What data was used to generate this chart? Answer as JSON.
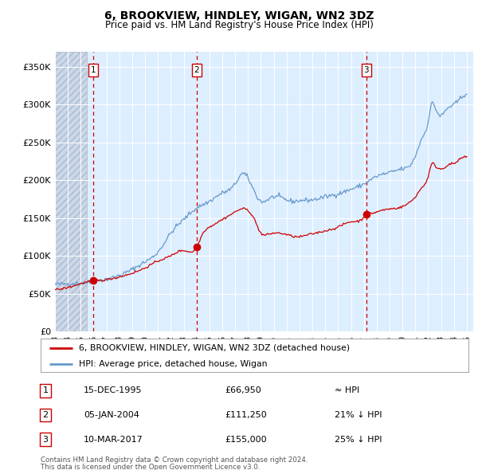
{
  "title": "6, BROOKVIEW, HINDLEY, WIGAN, WN2 3DZ",
  "subtitle": "Price paid vs. HM Land Registry's House Price Index (HPI)",
  "legend_line1": "6, BROOKVIEW, HINDLEY, WIGAN, WN2 3DZ (detached house)",
  "legend_line2": "HPI: Average price, detached house, Wigan",
  "footer1": "Contains HM Land Registry data © Crown copyright and database right 2024.",
  "footer2": "This data is licensed under the Open Government Licence v3.0.",
  "transactions": [
    {
      "num": 1,
      "date": "15-DEC-1995",
      "price": 66950,
      "note": "≈ HPI",
      "x_year": 1995.96
    },
    {
      "num": 2,
      "date": "05-JAN-2004",
      "price": 111250,
      "note": "21% ↓ HPI",
      "x_year": 2004.01
    },
    {
      "num": 3,
      "date": "10-MAR-2017",
      "price": 155000,
      "note": "25% ↓ HPI",
      "x_year": 2017.19
    }
  ],
  "hpi_color": "#6699cc",
  "price_color": "#cc0000",
  "vline_color": "#cc0000",
  "bg_chart": "#ddeeff",
  "bg_white": "#ffffff",
  "ylim": [
    0,
    370000
  ],
  "yticks": [
    0,
    50000,
    100000,
    150000,
    200000,
    250000,
    300000,
    350000
  ],
  "ytick_labels": [
    "£0",
    "£50K",
    "£100K",
    "£150K",
    "£200K",
    "£250K",
    "£300K",
    "£350K"
  ],
  "xmin_year": 1993.0,
  "xmax_year": 2025.5,
  "hatch_end": 1995.5,
  "xtick_years": [
    1993,
    1994,
    1995,
    1996,
    1997,
    1998,
    1999,
    2000,
    2001,
    2002,
    2003,
    2004,
    2005,
    2006,
    2007,
    2008,
    2009,
    2010,
    2011,
    2012,
    2013,
    2014,
    2015,
    2016,
    2017,
    2018,
    2019,
    2020,
    2021,
    2022,
    2023,
    2024,
    2025
  ],
  "hpi_anchors": [
    [
      1993.0,
      62000
    ],
    [
      1994.0,
      63000
    ],
    [
      1995.0,
      64000
    ],
    [
      1996.0,
      65500
    ],
    [
      1997.0,
      69000
    ],
    [
      1998.0,
      74000
    ],
    [
      1999.0,
      82000
    ],
    [
      2000.0,
      92000
    ],
    [
      2001.0,
      105000
    ],
    [
      2002.0,
      130000
    ],
    [
      2003.0,
      148000
    ],
    [
      2004.0,
      163000
    ],
    [
      2005.0,
      172000
    ],
    [
      2006.0,
      183000
    ],
    [
      2007.0,
      195000
    ],
    [
      2007.5,
      208000
    ],
    [
      2008.5,
      185000
    ],
    [
      2009.0,
      172000
    ],
    [
      2009.5,
      174000
    ],
    [
      2010.0,
      178000
    ],
    [
      2011.0,
      174000
    ],
    [
      2011.5,
      172000
    ],
    [
      2012.0,
      173000
    ],
    [
      2013.0,
      174000
    ],
    [
      2014.0,
      178000
    ],
    [
      2015.0,
      182000
    ],
    [
      2016.0,
      188000
    ],
    [
      2017.0,
      195000
    ],
    [
      2018.0,
      205000
    ],
    [
      2019.0,
      210000
    ],
    [
      2020.0,
      215000
    ],
    [
      2020.5,
      218000
    ],
    [
      2021.0,
      232000
    ],
    [
      2021.5,
      255000
    ],
    [
      2022.0,
      278000
    ],
    [
      2022.3,
      302000
    ],
    [
      2022.5,
      298000
    ],
    [
      2023.0,
      285000
    ],
    [
      2023.3,
      291000
    ],
    [
      2023.5,
      295000
    ],
    [
      2024.0,
      300000
    ],
    [
      2024.5,
      308000
    ],
    [
      2025.0,
      315000
    ]
  ],
  "price_anchors": [
    [
      1993.0,
      55000
    ],
    [
      1994.0,
      58000
    ],
    [
      1995.0,
      63000
    ],
    [
      1995.96,
      66950
    ],
    [
      1996.5,
      67500
    ],
    [
      1997.0,
      68500
    ],
    [
      1998.0,
      72000
    ],
    [
      1999.0,
      77000
    ],
    [
      2000.0,
      84000
    ],
    [
      2001.0,
      93000
    ],
    [
      2002.0,
      100000
    ],
    [
      2003.0,
      107000
    ],
    [
      2004.01,
      111250
    ],
    [
      2004.5,
      130000
    ],
    [
      2005.0,
      138000
    ],
    [
      2005.5,
      143000
    ],
    [
      2006.0,
      148000
    ],
    [
      2007.0,
      158000
    ],
    [
      2007.5,
      162000
    ],
    [
      2008.0,
      160000
    ],
    [
      2008.5,
      148000
    ],
    [
      2009.0,
      130000
    ],
    [
      2009.5,
      128000
    ],
    [
      2010.0,
      130000
    ],
    [
      2011.0,
      128000
    ],
    [
      2012.0,
      125000
    ],
    [
      2012.5,
      127000
    ],
    [
      2013.0,
      129000
    ],
    [
      2014.0,
      133000
    ],
    [
      2015.0,
      138000
    ],
    [
      2016.0,
      145000
    ],
    [
      2017.0,
      151000
    ],
    [
      2017.19,
      155000
    ],
    [
      2017.5,
      156000
    ],
    [
      2018.0,
      158000
    ],
    [
      2019.0,
      162000
    ],
    [
      2020.0,
      165000
    ],
    [
      2020.5,
      170000
    ],
    [
      2021.0,
      178000
    ],
    [
      2021.5,
      190000
    ],
    [
      2022.0,
      205000
    ],
    [
      2022.3,
      222000
    ],
    [
      2022.5,
      220000
    ],
    [
      2023.0,
      215000
    ],
    [
      2023.3,
      217000
    ],
    [
      2023.5,
      220000
    ],
    [
      2024.0,
      222000
    ],
    [
      2024.5,
      228000
    ],
    [
      2025.0,
      230000
    ]
  ]
}
